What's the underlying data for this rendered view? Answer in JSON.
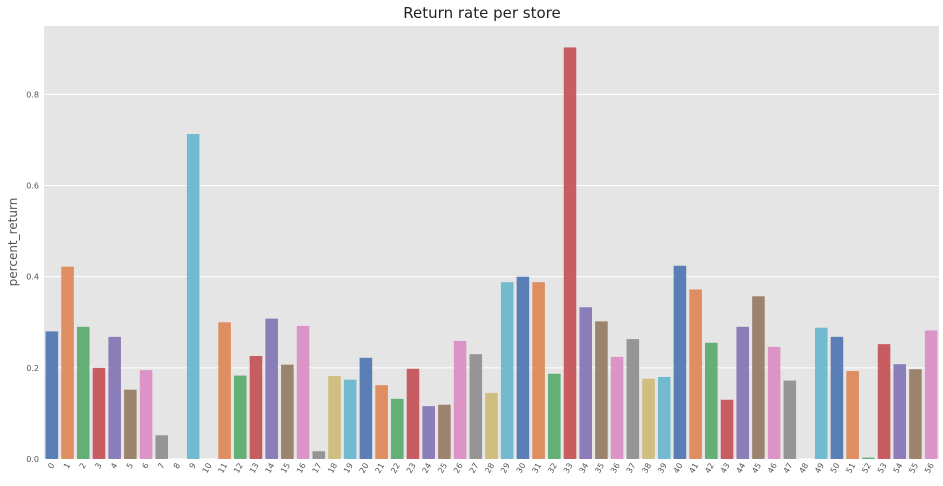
{
  "chart_data": {
    "type": "bar",
    "title": "Return rate per store",
    "xlabel": "",
    "ylabel": "percent_return",
    "ylim": [
      0,
      0.95
    ],
    "yticks": [
      0.0,
      0.2,
      0.4,
      0.6,
      0.8
    ],
    "ytick_labels": [
      "0.0",
      "0.2",
      "0.4",
      "0.6",
      "0.8"
    ],
    "grid": true,
    "legend": "none",
    "categories": [
      "0",
      "1",
      "2",
      "3",
      "4",
      "5",
      "6",
      "7",
      "8",
      "9",
      "10",
      "11",
      "12",
      "13",
      "14",
      "15",
      "16",
      "17",
      "18",
      "19",
      "20",
      "21",
      "22",
      "23",
      "24",
      "25",
      "26",
      "27",
      "28",
      "29",
      "30",
      "31",
      "32",
      "33",
      "34",
      "35",
      "36",
      "37",
      "38",
      "39",
      "40",
      "41",
      "42",
      "43",
      "44",
      "45",
      "46",
      "47",
      "48",
      "49",
      "50",
      "51",
      "52",
      "53",
      "54",
      "55",
      "56"
    ],
    "values": [
      0.28,
      0.422,
      0.29,
      0.2,
      0.268,
      0.152,
      0.195,
      0.052,
      0.0,
      0.713,
      0.0,
      0.3,
      0.183,
      0.226,
      0.308,
      0.207,
      0.292,
      0.017,
      0.182,
      0.174,
      0.222,
      0.162,
      0.132,
      0.198,
      0.116,
      0.119,
      0.259,
      0.23,
      0.145,
      0.388,
      0.4,
      0.388,
      0.187,
      0.903,
      0.333,
      0.302,
      0.224,
      0.263,
      0.176,
      0.18,
      0.424,
      0.372,
      0.255,
      0.13,
      0.29,
      0.357,
      0.246,
      0.172,
      0.0,
      0.288,
      0.268,
      0.193,
      0.003,
      0.252,
      0.208,
      0.197,
      0.282
    ],
    "palette": [
      "#4c72b0",
      "#dd8452",
      "#55a868",
      "#c44e52",
      "#8172b3",
      "#937860",
      "#da8bc3",
      "#8c8c8c",
      "#ccb974",
      "#64b5cd"
    ],
    "colors": {
      "background": "#e5e5e5",
      "grid": "#ffffff",
      "bar_alpha": 0.9
    }
  }
}
